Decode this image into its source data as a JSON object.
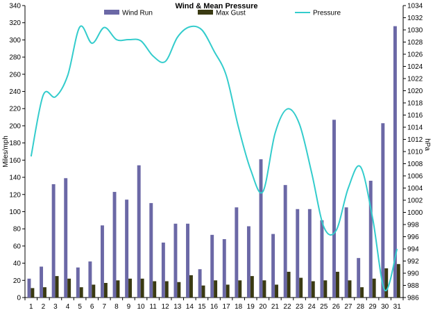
{
  "chart_data": {
    "type": "bar",
    "title": "Wind & Mean Pressure",
    "ylabel": "Miles/mph",
    "y2label": "hPa",
    "xlabel": "",
    "categories": [
      "1",
      "2",
      "3",
      "4",
      "5",
      "6",
      "7",
      "8",
      "9",
      "10",
      "11",
      "12",
      "13",
      "14",
      "15",
      "16",
      "17",
      "18",
      "19",
      "20",
      "21",
      "22",
      "23",
      "24",
      "25",
      "26",
      "27",
      "28",
      "29",
      "30",
      "31"
    ],
    "ylim": [
      0,
      340
    ],
    "yticks": [
      0,
      20,
      40,
      60,
      80,
      100,
      120,
      140,
      160,
      180,
      200,
      220,
      240,
      260,
      280,
      300,
      320,
      340
    ],
    "y2lim": [
      986,
      1034
    ],
    "y2ticks": [
      986,
      988,
      990,
      992,
      994,
      996,
      998,
      1000,
      1002,
      1004,
      1006,
      1008,
      1010,
      1012,
      1014,
      1016,
      1018,
      1020,
      1022,
      1024,
      1026,
      1028,
      1030,
      1032,
      1034
    ],
    "legend_position": "top",
    "grid": false,
    "series": [
      {
        "name": "Wind Run",
        "kind": "bar",
        "axis": "left",
        "color": "#6b68a6",
        "values": [
          22,
          36,
          132,
          139,
          35,
          42,
          84,
          123,
          114,
          154,
          110,
          64,
          86,
          86,
          33,
          73,
          68,
          105,
          83,
          161,
          74,
          131,
          103,
          103,
          90,
          207,
          105,
          46,
          136,
          203,
          316
        ]
      },
      {
        "name": "Max Gust",
        "kind": "bar",
        "axis": "left",
        "color": "#3a3a12",
        "values": [
          11,
          12,
          25,
          22,
          12,
          15,
          17,
          20,
          22,
          22,
          19,
          19,
          18,
          26,
          14,
          20,
          15,
          20,
          25,
          20,
          15,
          30,
          23,
          19,
          20,
          30,
          20,
          12,
          22,
          34,
          39
        ]
      },
      {
        "name": "Pressure",
        "kind": "line",
        "axis": "right",
        "color": "#33cccc",
        "values": [
          1009.2,
          1019.3,
          1019.0,
          1022.5,
          1030.5,
          1027.8,
          1030.4,
          1028.4,
          1028.4,
          1028.2,
          1025.7,
          1024.8,
          1028.8,
          1030.5,
          1030.0,
          1026.5,
          1022.5,
          1014.0,
          1007.0,
          1003.4,
          1013.0,
          1017.0,
          1014.5,
          1006.5,
          997.6,
          997.0,
          1004.0,
          1007.5,
          999.0,
          987.2,
          994.0
        ]
      }
    ]
  }
}
